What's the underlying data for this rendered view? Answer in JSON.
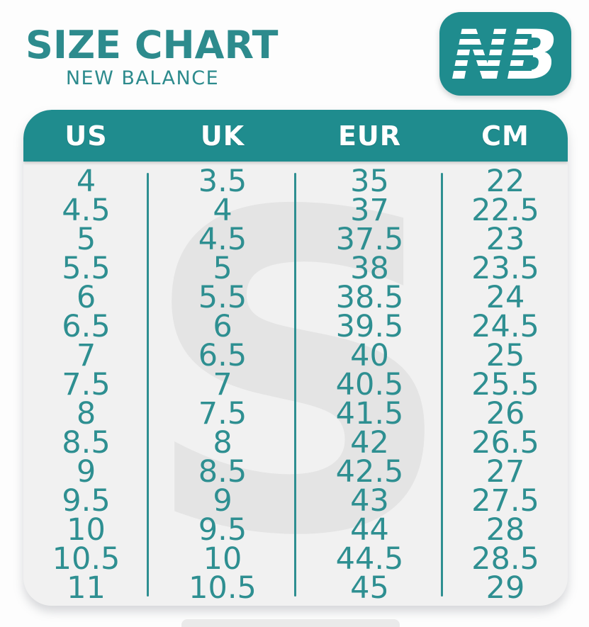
{
  "header": {
    "title": "SIZE CHART",
    "subtitle": "NEW BALANCE"
  },
  "logo": {
    "brand": "New Balance",
    "monogram_n": "N",
    "monogram_b": "B"
  },
  "watermark_letter": "S",
  "colors": {
    "teal_fill": "#1f8c8e",
    "teal_text": "#2e8f91",
    "header_text": "#ffffff",
    "card_bg": "#f1f1f1",
    "watermark": "#e4e4e4"
  },
  "chart_data": {
    "type": "table",
    "title": "SIZE CHART",
    "subtitle": "NEW BALANCE",
    "columns": [
      "US",
      "UK",
      "EUR",
      "CM"
    ],
    "rows": [
      [
        "4",
        "3.5",
        "35",
        "22"
      ],
      [
        "4.5",
        "4",
        "37",
        "22.5"
      ],
      [
        "5",
        "4.5",
        "37.5",
        "23"
      ],
      [
        "5.5",
        "5",
        "38",
        "23.5"
      ],
      [
        "6",
        "5.5",
        "38.5",
        "24"
      ],
      [
        "6.5",
        "6",
        "39.5",
        "24.5"
      ],
      [
        "7",
        "6.5",
        "40",
        "25"
      ],
      [
        "7.5",
        "7",
        "40.5",
        "25.5"
      ],
      [
        "8",
        "7.5",
        "41.5",
        "26"
      ],
      [
        "8.5",
        "8",
        "42",
        "26.5"
      ],
      [
        "9",
        "8.5",
        "42.5",
        "27"
      ],
      [
        "9.5",
        "9",
        "43",
        "27.5"
      ],
      [
        "10",
        "9.5",
        "44",
        "28"
      ],
      [
        "10.5",
        "10",
        "44.5",
        "28.5"
      ],
      [
        "11",
        "10.5",
        "45",
        "29"
      ]
    ]
  }
}
